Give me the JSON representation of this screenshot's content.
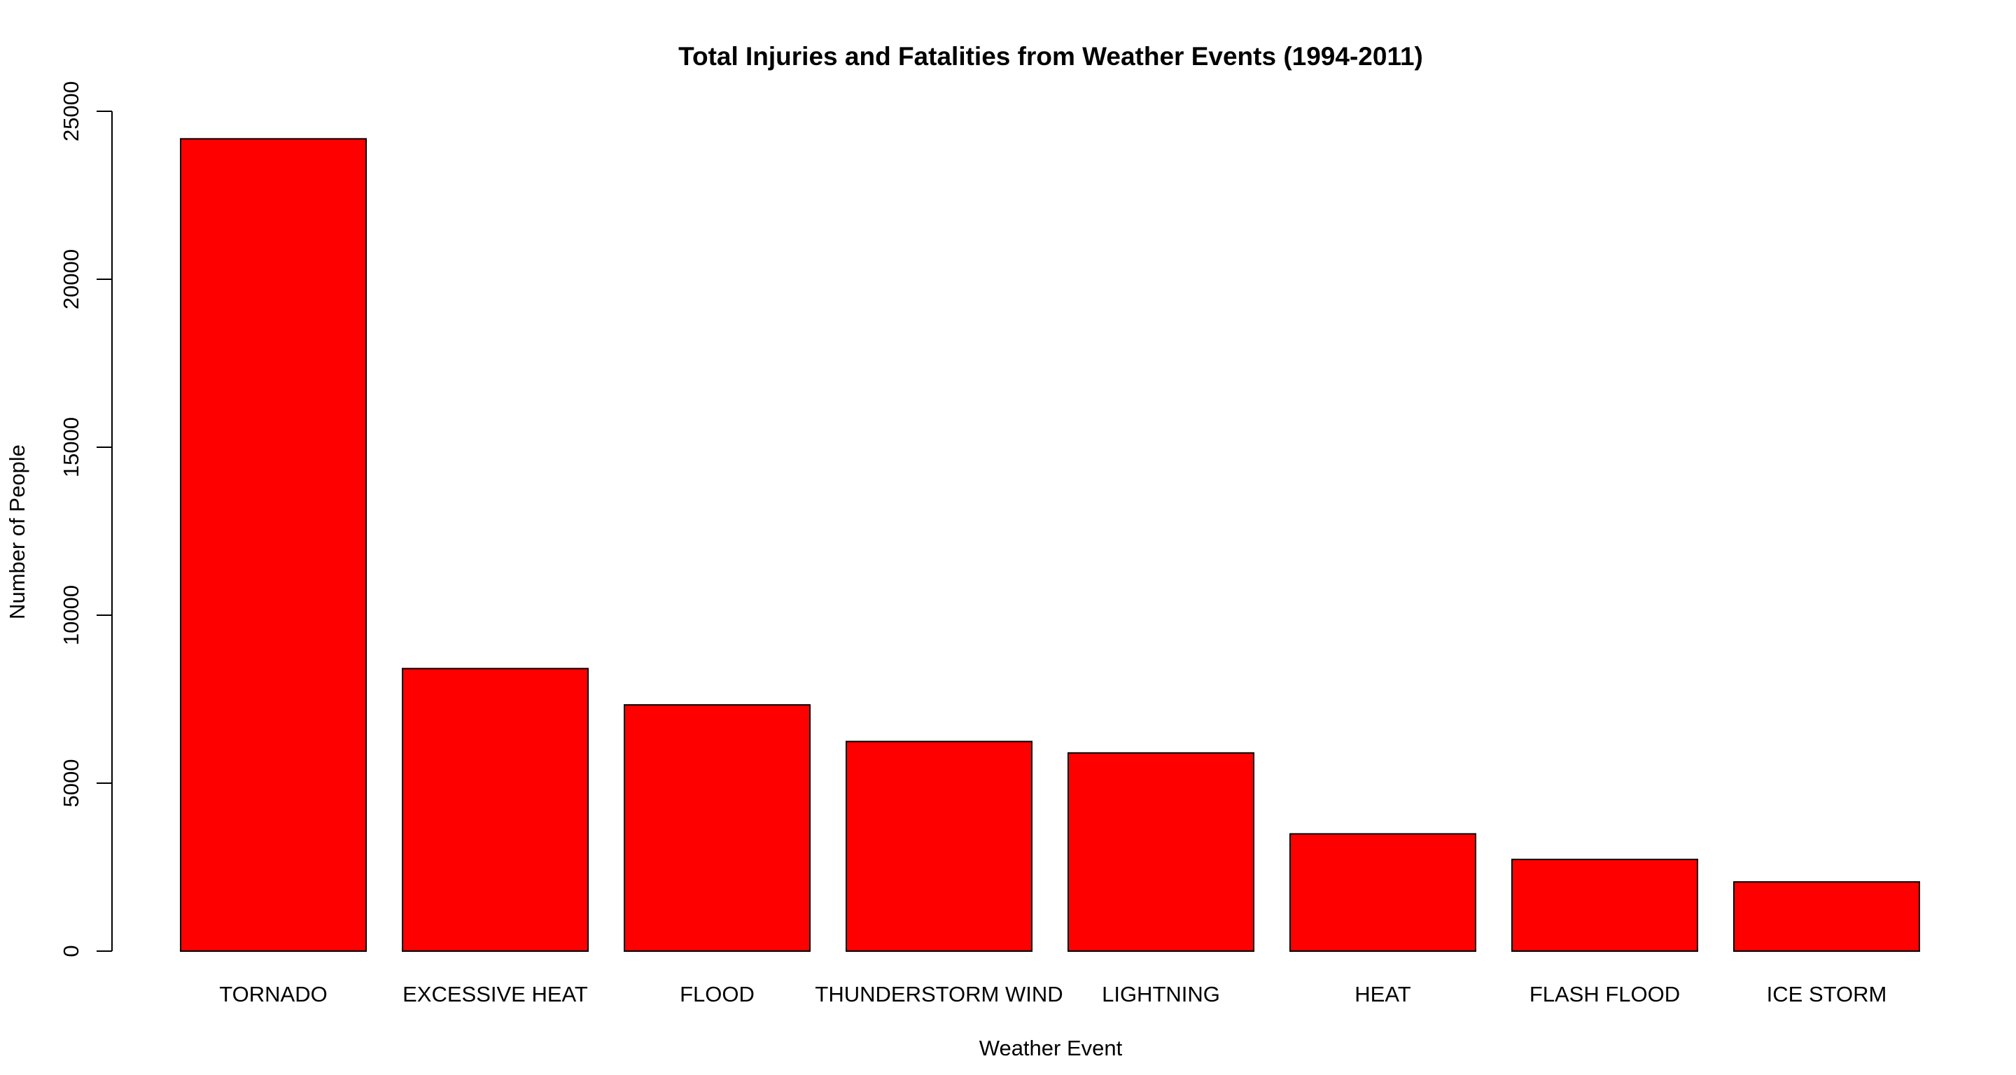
{
  "chart_data": {
    "type": "bar",
    "title": "Total Injuries and Fatalities from Weather Events (1994-2011)",
    "xlabel": "Weather Event",
    "ylabel": "Number of People",
    "categories": [
      "TORNADO",
      "EXCESSIVE HEAT",
      "FLOOD",
      "THUNDERSTORM WIND",
      "LIGHTNING",
      "HEAT",
      "FLASH FLOOD",
      "ICE STORM"
    ],
    "values": [
      24180,
      8410,
      7330,
      6240,
      5900,
      3490,
      2730,
      2060
    ],
    "ylim": [
      0,
      25000
    ],
    "yticks": [
      0,
      5000,
      10000,
      15000,
      20000,
      25000
    ],
    "grid": false,
    "legend": "none",
    "colors": {
      "bar_fill": "#ff0000",
      "bar_stroke": "#000000",
      "axis": "#000000",
      "background": "#ffffff"
    }
  }
}
